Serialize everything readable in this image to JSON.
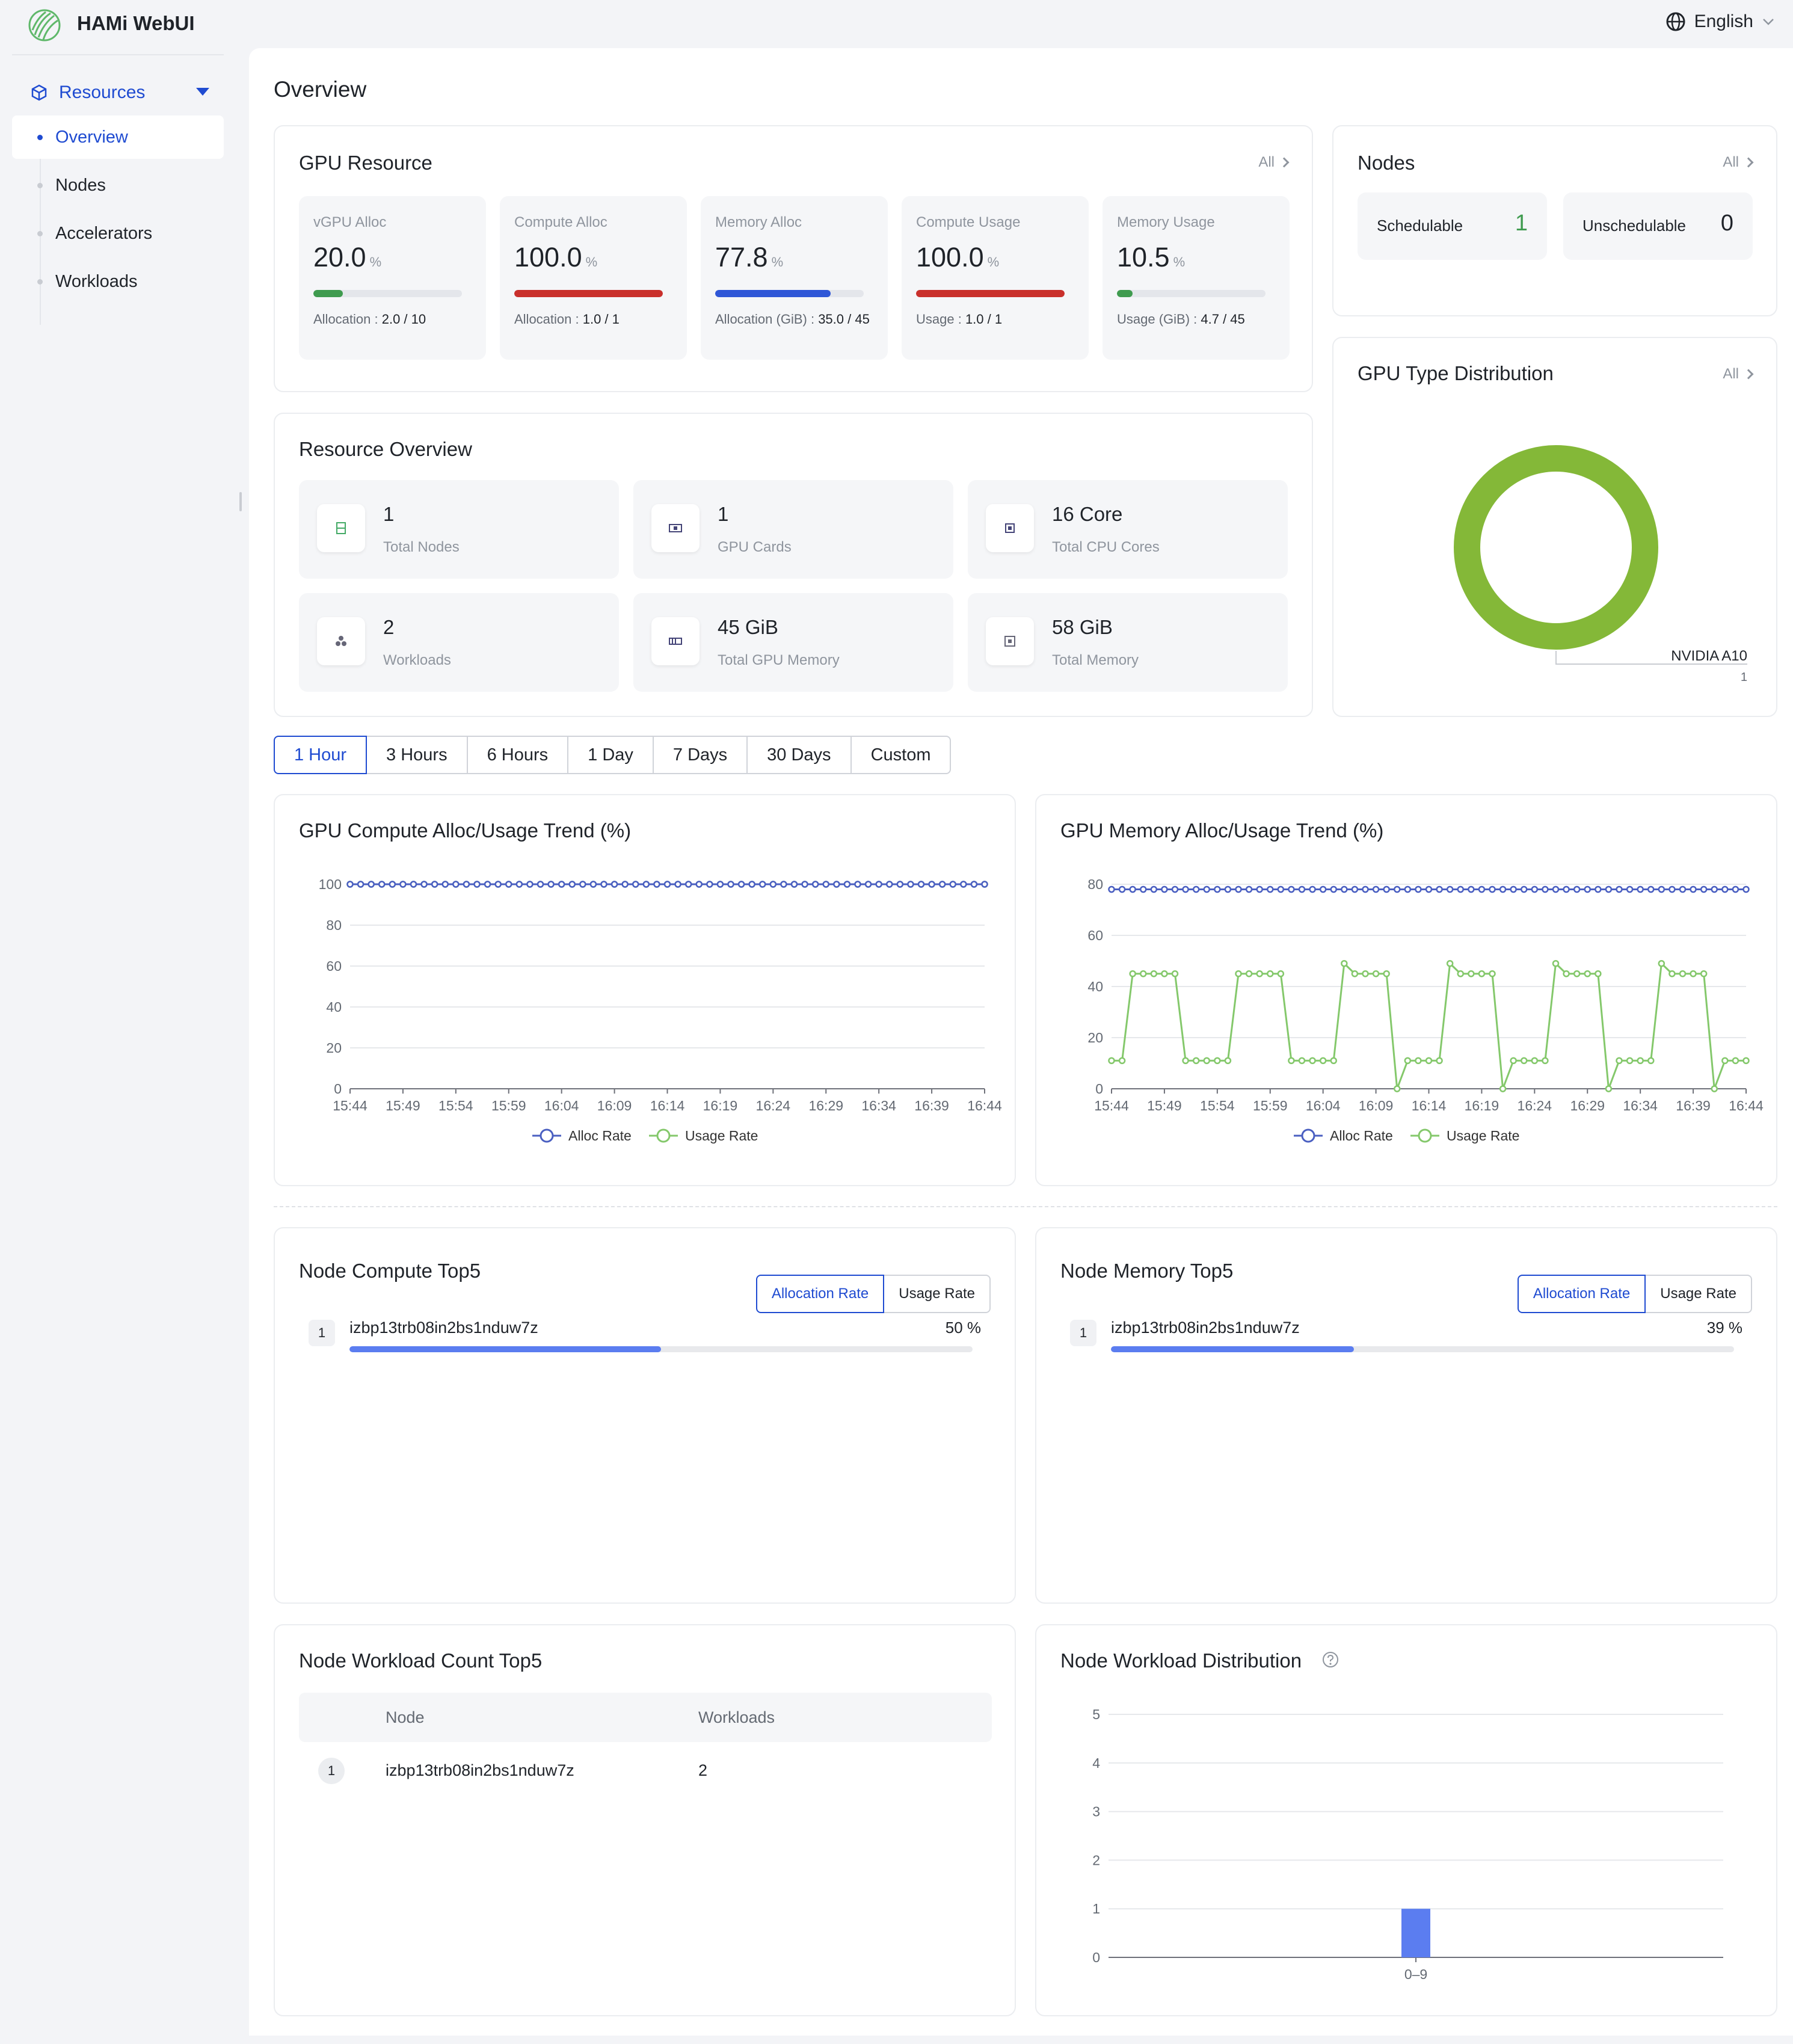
{
  "app": {
    "title": "HAMi WebUI",
    "language": "English"
  },
  "sidebar": {
    "section": "Resources",
    "items": [
      {
        "label": "Overview",
        "active": true
      },
      {
        "label": "Nodes",
        "active": false
      },
      {
        "label": "Accelerators",
        "active": false
      },
      {
        "label": "Workloads",
        "active": false
      }
    ]
  },
  "page": {
    "title": "Overview"
  },
  "gpu_resource": {
    "title": "GPU Resource",
    "all_label": "All",
    "stats": [
      {
        "label": "vGPU Alloc",
        "value": "20.0",
        "unit": "%",
        "fraction": 0.2,
        "color": "#3f9b4f",
        "detail_key": "Allocation",
        "detail_value": "2.0 / 10"
      },
      {
        "label": "Compute Alloc",
        "value": "100.0",
        "unit": "%",
        "fraction": 1.0,
        "color": "#c9302c",
        "detail_key": "Allocation",
        "detail_value": "1.0 / 1"
      },
      {
        "label": "Memory Alloc",
        "value": "77.8",
        "unit": "%",
        "fraction": 0.778,
        "color": "#2f57d7",
        "detail_key": "Allocation (GiB)",
        "detail_value": "35.0 / 45"
      },
      {
        "label": "Compute Usage",
        "value": "100.0",
        "unit": "%",
        "fraction": 1.0,
        "color": "#c9302c",
        "detail_key": "Usage",
        "detail_value": "1.0 / 1"
      },
      {
        "label": "Memory Usage",
        "value": "10.5",
        "unit": "%",
        "fraction": 0.105,
        "color": "#3f9b4f",
        "detail_key": "Usage (GiB)",
        "detail_value": "4.7 / 45"
      }
    ]
  },
  "nodes_card": {
    "title": "Nodes",
    "all_label": "All",
    "schedulable_label": "Schedulable",
    "schedulable_value": "1",
    "schedulable_color": "#3f9b4f",
    "unschedulable_label": "Unschedulable",
    "unschedulable_value": "0"
  },
  "resource_overview": {
    "title": "Resource Overview",
    "items": [
      {
        "value": "1",
        "label": "Total Nodes",
        "icon": "node-icon"
      },
      {
        "value": "1",
        "label": "GPU Cards",
        "icon": "gpu-card-icon"
      },
      {
        "value": "16 Core",
        "label": "Total CPU Cores",
        "icon": "cpu-icon"
      },
      {
        "value": "2",
        "label": "Workloads",
        "icon": "workloads-icon"
      },
      {
        "value": "45 GiB",
        "label": "Total GPU Memory",
        "icon": "gpu-memory-icon"
      },
      {
        "value": "58 GiB",
        "label": "Total Memory",
        "icon": "memory-icon"
      }
    ]
  },
  "gpu_type_distribution": {
    "title": "GPU Type Distribution",
    "all_label": "All",
    "chart_data": {
      "type": "pie",
      "slices": [
        {
          "label": "NVIDIA A10",
          "value": 1,
          "color": "#84b838"
        }
      ]
    }
  },
  "time_ranges": [
    "1 Hour",
    "3 Hours",
    "6 Hours",
    "1 Day",
    "7 Days",
    "30 Days",
    "Custom"
  ],
  "time_range_active": 0,
  "compute_trend": {
    "title": "GPU Compute Alloc/Usage Trend (%)",
    "chart_data": {
      "type": "line",
      "x_labels": [
        "15:44",
        "15:49",
        "15:54",
        "15:59",
        "16:04",
        "16:09",
        "16:14",
        "16:19",
        "16:24",
        "16:29",
        "16:34",
        "16:39",
        "16:44"
      ],
      "ylim": [
        0,
        100
      ],
      "y_ticks": [
        0,
        20,
        40,
        60,
        80,
        100
      ],
      "series": [
        {
          "name": "Alloc Rate",
          "color": "#4a5fc1",
          "values": [
            100,
            100,
            100,
            100,
            100,
            100,
            100,
            100,
            100,
            100,
            100,
            100,
            100,
            100,
            100,
            100,
            100,
            100,
            100,
            100,
            100,
            100,
            100,
            100,
            100,
            100,
            100,
            100,
            100,
            100,
            100,
            100,
            100,
            100,
            100,
            100,
            100,
            100,
            100,
            100,
            100,
            100,
            100,
            100,
            100,
            100,
            100,
            100,
            100,
            100,
            100,
            100,
            100,
            100,
            100,
            100,
            100,
            100,
            100,
            100,
            100
          ]
        },
        {
          "name": "Usage Rate",
          "color": "#84c86b",
          "values": [
            100,
            100,
            100,
            100,
            100,
            100,
            100,
            100,
            100,
            100,
            100,
            100,
            100,
            100,
            100,
            100,
            100,
            100,
            100,
            100,
            100,
            100,
            100,
            100,
            100,
            100,
            100,
            100,
            100,
            100,
            100,
            100,
            100,
            100,
            100,
            100,
            100,
            100,
            100,
            100,
            100,
            100,
            100,
            100,
            100,
            100,
            100,
            100,
            100,
            100,
            100,
            100,
            100,
            100,
            100,
            100,
            100,
            100,
            100,
            100,
            100
          ]
        }
      ]
    }
  },
  "memory_trend": {
    "title": "GPU Memory Alloc/Usage Trend (%)",
    "chart_data": {
      "type": "line",
      "x_labels": [
        "15:44",
        "15:49",
        "15:54",
        "15:59",
        "16:04",
        "16:09",
        "16:14",
        "16:19",
        "16:24",
        "16:29",
        "16:34",
        "16:39",
        "16:44"
      ],
      "ylim": [
        0,
        80
      ],
      "y_ticks": [
        0,
        20,
        40,
        60,
        80
      ],
      "series": [
        {
          "name": "Alloc Rate",
          "color": "#4a5fc1",
          "values": [
            78,
            78,
            78,
            78,
            78,
            78,
            78,
            78,
            78,
            78,
            78,
            78,
            78,
            78,
            78,
            78,
            78,
            78,
            78,
            78,
            78,
            78,
            78,
            78,
            78,
            78,
            78,
            78,
            78,
            78,
            78,
            78,
            78,
            78,
            78,
            78,
            78,
            78,
            78,
            78,
            78,
            78,
            78,
            78,
            78,
            78,
            78,
            78,
            78,
            78,
            78,
            78,
            78,
            78,
            78,
            78,
            78,
            78,
            78,
            78,
            78
          ]
        },
        {
          "name": "Usage Rate",
          "color": "#84c86b",
          "values": [
            11,
            11,
            45,
            45,
            45,
            45,
            45,
            11,
            11,
            11,
            11,
            11,
            45,
            45,
            45,
            45,
            45,
            11,
            11,
            11,
            11,
            11,
            49,
            45,
            45,
            45,
            45,
            0,
            11,
            11,
            11,
            11,
            49,
            45,
            45,
            45,
            45,
            0,
            11,
            11,
            11,
            11,
            49,
            45,
            45,
            45,
            45,
            0,
            11,
            11,
            11,
            11,
            49,
            45,
            45,
            45,
            45,
            0,
            11,
            11,
            11
          ]
        }
      ]
    }
  },
  "compute_top5": {
    "title": "Node Compute Top5",
    "toggle": [
      "Allocation Rate",
      "Usage Rate"
    ],
    "rows": [
      {
        "rank": "1",
        "name": "izbp13trb08in2bs1nduw7z",
        "pct_label": "50 %",
        "fraction": 0.5
      }
    ]
  },
  "memory_top5": {
    "title": "Node Memory Top5",
    "toggle": [
      "Allocation Rate",
      "Usage Rate"
    ],
    "rows": [
      {
        "rank": "1",
        "name": "izbp13trb08in2bs1nduw7z",
        "pct_label": "39 %",
        "fraction": 0.39
      }
    ]
  },
  "workload_count_top5": {
    "title": "Node Workload Count Top5",
    "columns": [
      "Node",
      "Workloads"
    ],
    "rows": [
      {
        "rank": "1",
        "node": "izbp13trb08in2bs1nduw7z",
        "workloads": "2"
      }
    ]
  },
  "workload_distribution": {
    "title": "Node Workload Distribution",
    "chart_data": {
      "type": "bar",
      "categories": [
        "0–9"
      ],
      "values": [
        1
      ],
      "ylim": [
        0,
        5
      ],
      "y_ticks": [
        0,
        1,
        2,
        3,
        4,
        5
      ],
      "color": "#5b7df0"
    }
  }
}
